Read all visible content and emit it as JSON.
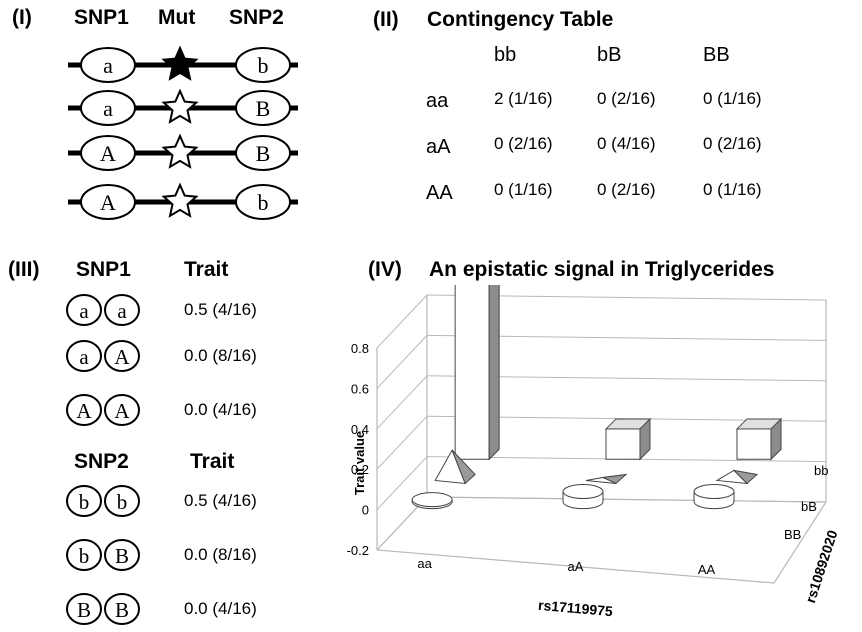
{
  "panel1": {
    "label": "(I)",
    "headers": [
      "SNP1",
      "Mut",
      "SNP2"
    ],
    "haplotypes": [
      {
        "snp1": "a",
        "snp2": "b",
        "mutant": true
      },
      {
        "snp1": "a",
        "snp2": "B",
        "mutant": false
      },
      {
        "snp1": "A",
        "snp2": "B",
        "mutant": false
      },
      {
        "snp1": "A",
        "snp2": "b",
        "mutant": false
      }
    ]
  },
  "panel2": {
    "label": "(II)",
    "title": "Contingency Table",
    "col_headers": [
      "bb",
      "bB",
      "BB"
    ],
    "rows": [
      {
        "header": "aa",
        "cells": [
          "2 (1/16)",
          "0 (2/16)",
          "0 (1/16)"
        ]
      },
      {
        "header": "aA",
        "cells": [
          "0 (2/16)",
          "0 (4/16)",
          "0 (2/16)"
        ]
      },
      {
        "header": "AA",
        "cells": [
          "0 (1/16)",
          "0 (2/16)",
          "0 (1/16)"
        ]
      }
    ]
  },
  "panel3": {
    "label": "(III)",
    "snp1": {
      "header": "SNP1",
      "trait_header": "Trait",
      "rows": [
        {
          "alleles": [
            "a",
            "a"
          ],
          "value": "0.5 (4/16)"
        },
        {
          "alleles": [
            "a",
            "A"
          ],
          "value": "0.0 (8/16)"
        },
        {
          "alleles": [
            "A",
            "A"
          ],
          "value": "0.0 (4/16)"
        }
      ]
    },
    "snp2": {
      "header": "SNP2",
      "trait_header": "Trait",
      "rows": [
        {
          "alleles": [
            "b",
            "b"
          ],
          "value": "0.5 (4/16)"
        },
        {
          "alleles": [
            "b",
            "B"
          ],
          "value": "0.0 (8/16)"
        },
        {
          "alleles": [
            "B",
            "B"
          ],
          "value": "0.0 (4/16)"
        }
      ]
    }
  },
  "panel4": {
    "label": "(IV)",
    "title": "An epistatic signal in Triglycerides"
  },
  "chart_data": {
    "type": "bar",
    "title": "An epistatic signal in Triglycerides",
    "ylabel": "Trait value",
    "xlabel": "rs17119975",
    "zlabel": "rs10892020",
    "x_categories": [
      "aa",
      "aA",
      "AA"
    ],
    "z_categories": [
      "bb",
      "bB",
      "BB"
    ],
    "y_ticks": [
      "0.8",
      "0.6",
      "0.4",
      "0.2",
      "0",
      "-0.2"
    ],
    "ylim": [
      -0.2,
      0.8
    ],
    "grid": true,
    "points": [
      {
        "x": "aa",
        "z": "bb",
        "value": 0.9,
        "shape": "box"
      },
      {
        "x": "aa",
        "z": "bB",
        "value": 0.15,
        "shape": "pyramid"
      },
      {
        "x": "aa",
        "z": "BB",
        "value": 0.0,
        "shape": "cylinder"
      },
      {
        "x": "aA",
        "z": "bb",
        "value": 0.15,
        "shape": "box"
      },
      {
        "x": "aA",
        "z": "bB",
        "value": 0.0,
        "shape": "pyramid"
      },
      {
        "x": "aA",
        "z": "BB",
        "value": 0.05,
        "shape": "cylinder"
      },
      {
        "x": "AA",
        "z": "bb",
        "value": 0.15,
        "shape": "box"
      },
      {
        "x": "AA",
        "z": "bB",
        "value": 0.05,
        "shape": "pyramid"
      },
      {
        "x": "AA",
        "z": "BB",
        "value": 0.05,
        "shape": "cylinder"
      }
    ]
  }
}
